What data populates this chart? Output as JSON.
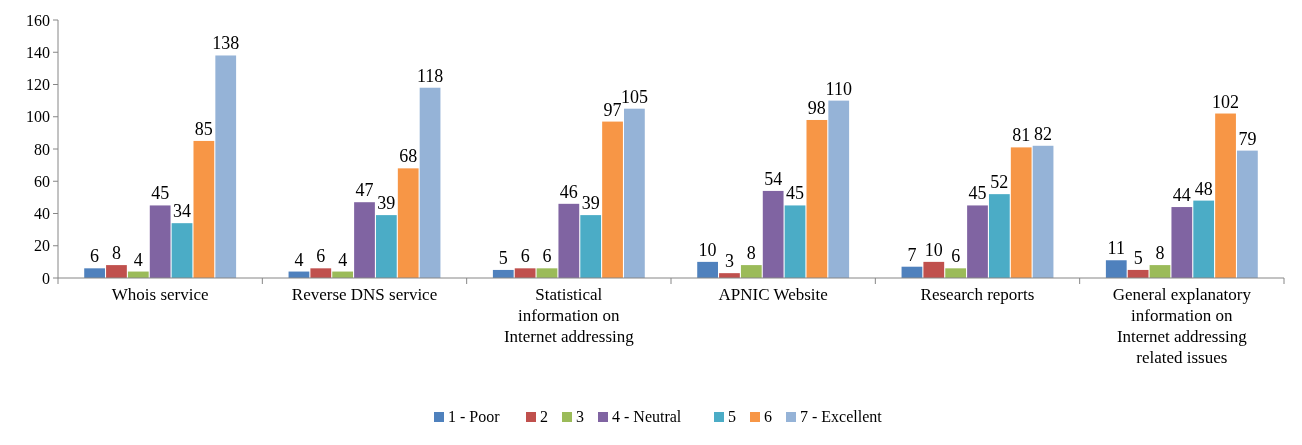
{
  "chart_data": {
    "type": "bar",
    "categories": [
      "Whois service",
      "Reverse DNS service",
      "Statistical information on Internet addressing",
      "APNIC Website",
      "Research reports",
      "General explanatory information on Internet addressing related issues"
    ],
    "series": [
      {
        "name": "1 - Poor",
        "color": "#4f81bd",
        "values": [
          6,
          4,
          5,
          10,
          7,
          11
        ]
      },
      {
        "name": "2",
        "color": "#c0504d",
        "values": [
          8,
          6,
          6,
          3,
          10,
          5
        ]
      },
      {
        "name": "3",
        "color": "#9bbb59",
        "values": [
          4,
          4,
          6,
          8,
          6,
          8
        ]
      },
      {
        "name": "4 - Neutral",
        "color": "#8064a2",
        "values": [
          45,
          47,
          46,
          54,
          45,
          44
        ]
      },
      {
        "name": "5",
        "color": "#4bacc6",
        "values": [
          34,
          39,
          39,
          45,
          52,
          48
        ]
      },
      {
        "name": "6",
        "color": "#f79646",
        "values": [
          85,
          68,
          97,
          98,
          81,
          102
        ]
      },
      {
        "name": "7 - Excellent",
        "color": "#95b3d7",
        "values": [
          138,
          118,
          105,
          110,
          82,
          79
        ]
      }
    ],
    "ylim": [
      0,
      160
    ],
    "yticks": [
      0,
      20,
      40,
      60,
      80,
      100,
      120,
      140,
      160
    ],
    "data_labels": true,
    "legend": "bottom"
  }
}
